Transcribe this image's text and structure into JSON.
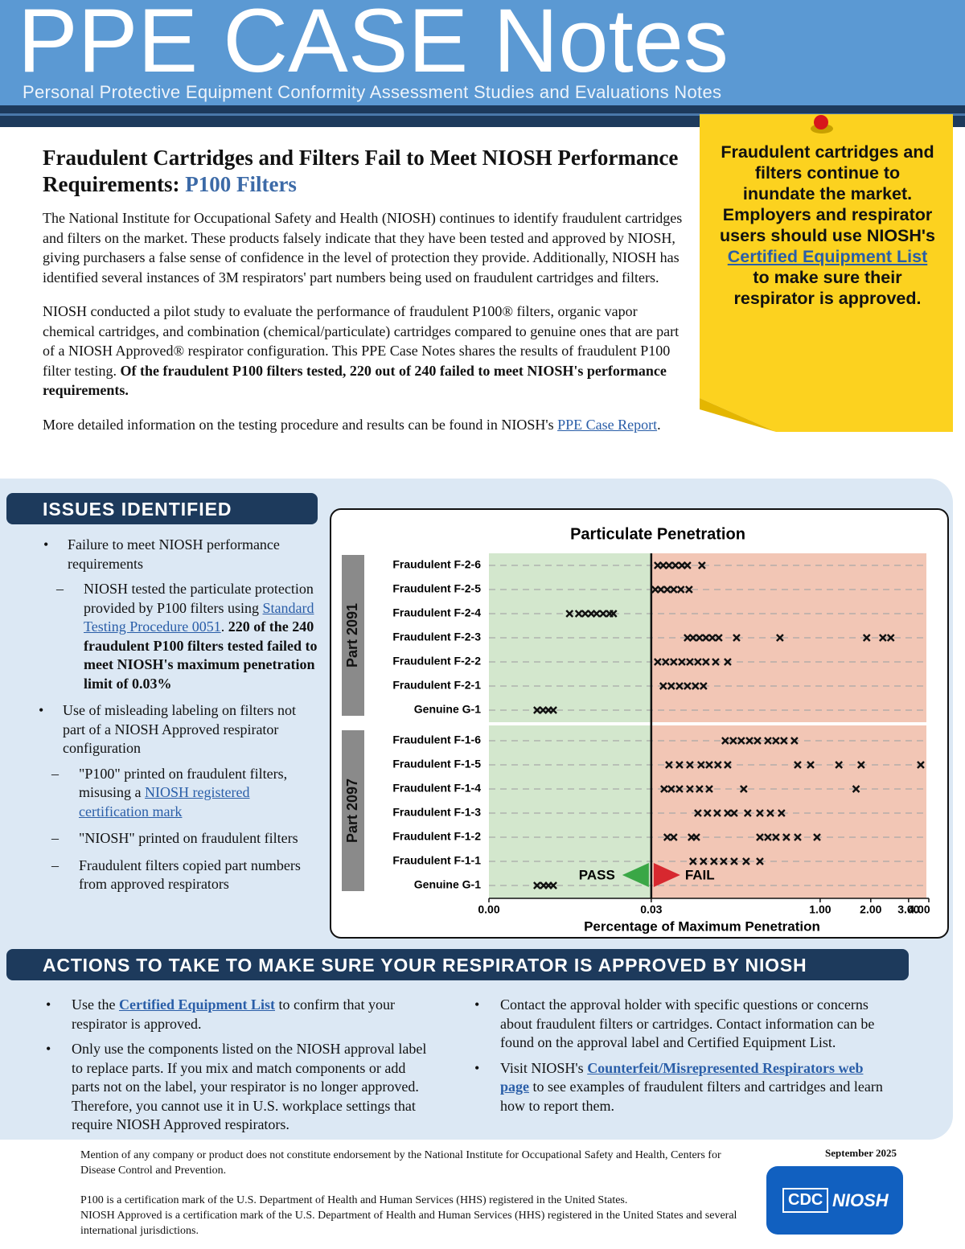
{
  "header": {
    "title": "PPE CASE Notes",
    "subtitle": "Personal Protective Equipment Conformity Assessment Studies and Evaluations Notes"
  },
  "article": {
    "heading": [
      {
        "text": "Fraudulent Cartridges and Filters Fail to Meet NIOSH Performance Requirements: "
      },
      {
        "text": "P100 Filters",
        "accent": true
      }
    ],
    "paragraphs": [
      [
        {
          "text": "The National Institute for Occupational Safety and Health (NIOSH) continues to identify fraudulent cartridges and filters on the market. These products falsely indicate that they have been tested and approved by NIOSH, giving purchasers a false sense of confidence in the level of protection they provide. Additionally, NIOSH has identified several instances of 3M respirators' part numbers being used on fraudulent cartridges and filters."
        }
      ],
      [
        {
          "text": "NIOSH conducted a pilot study to evaluate the performance of fraudulent P100® filters, organic vapor chemical cartridges, and combination (chemical/particulate) cartridges compared to genuine ones that are part of a NIOSH Approved® respirator configuration. This PPE Case Notes shares the results of fraudulent P100 filter testing. "
        },
        {
          "text": "Of the fraudulent P100 filters tested, 220 out of 240 failed to meet NIOSH's performance requirements.",
          "bold": true
        }
      ],
      [
        {
          "text": "More detailed information on the testing procedure and results can be found in NIOSH's "
        },
        {
          "text": "PPE Case Report",
          "link": true
        },
        {
          "text": "."
        }
      ]
    ]
  },
  "callout": [
    {
      "text": "Fraudulent cartridges and filters continue to inundate the market. Employers and respirator users should use NIOSH's "
    },
    {
      "text": "Certified Equipment List",
      "link": true
    },
    {
      "text": " to make sure their respirator is approved."
    }
  ],
  "issues": {
    "heading": "ISSUES IDENTIFIED",
    "items": [
      {
        "text": "Failure to meet NIOSH performance requirements",
        "subitems": [
          [
            {
              "text": "NIOSH tested the particulate protection provided by P100 filters using "
            },
            {
              "text": "Standard Testing Procedure 0051",
              "link": true
            },
            {
              "text": ". "
            },
            {
              "text": "220 of the 240 fraudulent P100 filters tested failed to meet NIOSH's maximum penetration limit of 0.03%",
              "bold": true
            }
          ]
        ]
      },
      {
        "text": "Use of misleading labeling on filters not part of a NIOSH Approved respirator configuration",
        "subitems": [
          [
            {
              "text": "\"P100\" printed on fraudulent filters, misusing a "
            },
            {
              "text": "NIOSH registered certification mark",
              "link": true
            }
          ],
          [
            {
              "text": "\"NIOSH\" printed on fraudulent filters"
            }
          ],
          [
            {
              "text": "Fraudulent filters copied part numbers from approved respirators"
            }
          ]
        ]
      }
    ]
  },
  "actions": {
    "heading": "ACTIONS TO TAKE TO MAKE SURE YOUR RESPIRATOR IS APPROVED BY NIOSH",
    "columns": [
      [
        [
          {
            "text": "Use the "
          },
          {
            "text": "Certified Equipment List",
            "link": true,
            "bold": true
          },
          {
            "text": " to confirm that your respirator is approved."
          }
        ],
        [
          {
            "text": "Only use the components listed on the NIOSH approval label to replace parts. If you mix and match components or add parts not on the label, your respirator is no longer approved. Therefore, you cannot use it in U.S. workplace settings that require NIOSH Approved respirators."
          }
        ]
      ],
      [
        [
          {
            "text": "Contact the approval holder with specific questions or concerns about fraudulent filters or cartridges. Contact information can be found on the approval label and Certified Equipment List."
          }
        ],
        [
          {
            "text": "Visit NIOSH's "
          },
          {
            "text": "Counterfeit/Misrepresented Respirators web page",
            "link": true,
            "bold": true
          },
          {
            "text": " to see examples of fraudulent filters and cartridges and learn how to report them."
          }
        ]
      ]
    ]
  },
  "footer": {
    "disclaimer": "Mention of any company or product does not constitute endorsement by the National Institute for Occupational Safety and Health, Centers for Disease Control and Prevention.",
    "date": "September 2025",
    "trademarks": [
      "P100 is a certification mark of the U.S. Department of Health and Human Services (HHS) registered in the United States.",
      "NIOSH Approved is a certification mark of the U.S. Department of Health and Human Services (HHS) registered in the United States and several international jurisdictions."
    ],
    "logo": [
      "CDC",
      "NIOSH"
    ]
  },
  "chart_data": {
    "type": "strip",
    "title": "Particulate Penetration",
    "xlabel": "Percentage of Maximum Penetration",
    "xlim": [
      0,
      4
    ],
    "xticks": [
      {
        "value": 0,
        "label": "0.00"
      },
      {
        "value": 0.03,
        "label": "0.03"
      },
      {
        "value": 1,
        "label": "1.00"
      },
      {
        "value": 2,
        "label": "2.00"
      },
      {
        "value": 3,
        "label": "3.00"
      },
      {
        "value": 4,
        "label": "4.00"
      }
    ],
    "limit": 0.03,
    "annotations": [
      "PASS",
      "FAIL"
    ],
    "pass_color": "#d3e7cd",
    "fail_color": "#f2c6b5",
    "marker_color": "#111111",
    "groups": [
      {
        "label": "Part 2091",
        "categories": [
          "Fraudulent F-2-6",
          "Fraudulent F-2-5",
          "Fraudulent F-2-4",
          "Fraudulent F-2-3",
          "Fraudulent F-2-2",
          "Fraudulent F-2-1",
          "Genuine G-1"
        ],
        "values": [
          [
            0.067,
            0.099,
            0.132,
            0.169,
            0.206,
            0.238,
            0.321
          ],
          [
            0.053,
            0.085,
            0.122,
            0.159,
            0.2,
            0.247
          ],
          [
            0.0149,
            0.0166,
            0.0178,
            0.0189,
            0.0199,
            0.0211,
            0.0223,
            0.023
          ],
          [
            0.238,
            0.27,
            0.307,
            0.344,
            0.381,
            0.418,
            0.52,
            0.769,
            1.92,
            2.32,
            2.53
          ],
          [
            0.067,
            0.113,
            0.159,
            0.206,
            0.252,
            0.298,
            0.344,
            0.4,
            0.469
          ],
          [
            0.099,
            0.145,
            0.192,
            0.238,
            0.284,
            0.33
          ],
          [
            0.0089,
            0.01,
            0.011,
            0.0119
          ]
        ]
      },
      {
        "label": "Part 2097",
        "categories": [
          "Fraudulent F-1-6",
          "Fraudulent F-1-5",
          "Fraudulent F-1-4",
          "Fraudulent F-1-3",
          "Fraudulent F-1-2",
          "Fraudulent F-1-1",
          "Genuine G-1"
        ],
        "values": [
          [
            0.455,
            0.501,
            0.547,
            0.594,
            0.64,
            0.7,
            0.746,
            0.792,
            0.852
          ],
          [
            0.132,
            0.192,
            0.252,
            0.316,
            0.363,
            0.413,
            0.469,
            0.871,
            0.945,
            1.37,
            1.81,
            3.6
          ],
          [
            0.104,
            0.145,
            0.192,
            0.252,
            0.307,
            0.363,
            0.561,
            1.71
          ],
          [
            0.298,
            0.353,
            0.409,
            0.469,
            0.506,
            0.584,
            0.654,
            0.714,
            0.778
          ],
          [
            0.122,
            0.159,
            0.261,
            0.289,
            0.654,
            0.7,
            0.746,
            0.806,
            0.871,
            0.982
          ],
          [
            0.27,
            0.33,
            0.39,
            0.446,
            0.506,
            0.575,
            0.654
          ],
          [
            0.0089,
            0.0101,
            0.011,
            0.0119
          ]
        ]
      }
    ]
  }
}
